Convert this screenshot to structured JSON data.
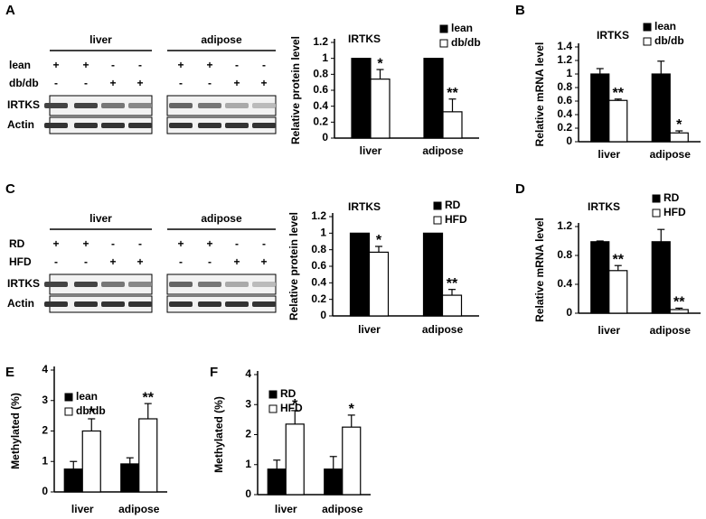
{
  "panel_letters": [
    "A",
    "B",
    "C",
    "D",
    "E",
    "F"
  ],
  "blots": [
    {
      "groups": [
        "liver",
        "adipose"
      ],
      "conditions": [
        {
          "name": "lean",
          "signs": [
            "+",
            "+",
            "-",
            "-",
            "+",
            "+",
            "-",
            "-"
          ]
        },
        {
          "name": "db/db",
          "signs": [
            "-",
            "-",
            "+",
            "+",
            "-",
            "-",
            "+",
            "+"
          ]
        }
      ],
      "bands": [
        "IRTKS",
        "Actin"
      ]
    },
    {
      "groups": [
        "liver",
        "adipose"
      ],
      "conditions": [
        {
          "name": "RD",
          "signs": [
            "+",
            "+",
            "-",
            "-",
            "+",
            "+",
            "-",
            "-"
          ]
        },
        {
          "name": "HFD",
          "signs": [
            "-",
            "-",
            "+",
            "+",
            "-",
            "-",
            "+",
            "+"
          ]
        }
      ],
      "bands": [
        "IRTKS",
        "Actin"
      ]
    }
  ],
  "chart_data": [
    {
      "type": "bar",
      "title": "IRTKS",
      "y_label": "Relative protein level",
      "categories": [
        "liver",
        "adipose"
      ],
      "series": [
        {
          "name": "lean",
          "color": "#000000",
          "values": [
            1,
            1
          ]
        },
        {
          "name": "db/db",
          "color": "#ffffff",
          "values": [
            0.74,
            0.33
          ],
          "errors": [
            0.12,
            0.16
          ],
          "labels": [
            "*",
            "**"
          ]
        }
      ],
      "ylim": [
        0,
        1.2
      ],
      "yticks": [
        0,
        0.2,
        0.4,
        0.6,
        0.8,
        1,
        1.2
      ]
    },
    {
      "type": "bar",
      "title": "IRTKS",
      "y_label": "Relative mRNA level",
      "categories": [
        "liver",
        "adipose"
      ],
      "series": [
        {
          "name": "lean",
          "color": "#000000",
          "values": [
            1.0,
            1.0
          ],
          "errors": [
            0.08,
            0.19
          ]
        },
        {
          "name": "db/db",
          "color": "#ffffff",
          "values": [
            0.61,
            0.13
          ],
          "errors": [
            0.02,
            0.03
          ],
          "labels": [
            "**",
            "*"
          ]
        }
      ],
      "ylim": [
        0,
        1.4
      ],
      "yticks": [
        0,
        0.2,
        0.4,
        0.6,
        0.8,
        1,
        1.2,
        1.4
      ]
    },
    {
      "type": "bar",
      "title": "IRTKS",
      "y_label": "Relative protein level",
      "categories": [
        "liver",
        "adipose"
      ],
      "series": [
        {
          "name": "RD",
          "color": "#000000",
          "values": [
            1,
            1
          ]
        },
        {
          "name": "HFD",
          "color": "#ffffff",
          "values": [
            0.77,
            0.25
          ],
          "errors": [
            0.07,
            0.07
          ],
          "labels": [
            "*",
            "**"
          ]
        }
      ],
      "ylim": [
        0,
        1.2
      ],
      "yticks": [
        0,
        0.2,
        0.4,
        0.6,
        0.8,
        1,
        1.2
      ]
    },
    {
      "type": "bar",
      "title": "IRTKS",
      "y_label": "Relative mRNA level",
      "categories": [
        "liver",
        "adipose"
      ],
      "series": [
        {
          "name": "RD",
          "color": "#000000",
          "values": [
            0.99,
            0.99
          ],
          "errors": [
            0.01,
            0.17
          ]
        },
        {
          "name": "HFD",
          "color": "#ffffff",
          "values": [
            0.59,
            0.05
          ],
          "errors": [
            0.07,
            0.02
          ],
          "labels": [
            "**",
            "**"
          ]
        }
      ],
      "ylim": [
        0,
        1.2
      ],
      "yticks": [
        0,
        0.4,
        0.8,
        1.2
      ]
    },
    {
      "type": "bar",
      "y_label": "Methylated (%)",
      "categories": [
        "liver",
        "adipose"
      ],
      "series": [
        {
          "name": "lean",
          "color": "#000000",
          "values": [
            0.75,
            0.92
          ],
          "errors": [
            0.25,
            0.2
          ]
        },
        {
          "name": "db/db",
          "color": "#ffffff",
          "values": [
            2.0,
            2.4
          ],
          "errors": [
            0.4,
            0.5
          ],
          "labels": [
            "*",
            "**"
          ]
        }
      ],
      "ylim": [
        0,
        4
      ],
      "yticks": [
        0,
        1,
        2,
        3,
        4
      ]
    },
    {
      "type": "bar",
      "y_label": "Methylated (%)",
      "categories": [
        "liver",
        "adipose"
      ],
      "series": [
        {
          "name": "RD",
          "color": "#000000",
          "values": [
            0.85,
            0.85
          ],
          "errors": [
            0.3,
            0.42
          ]
        },
        {
          "name": "HFD",
          "color": "#ffffff",
          "values": [
            2.35,
            2.25
          ],
          "errors": [
            0.45,
            0.4
          ],
          "labels": [
            "*",
            "*"
          ]
        }
      ],
      "ylim": [
        0,
        4
      ],
      "yticks": [
        0,
        1,
        2,
        3,
        4
      ]
    }
  ]
}
